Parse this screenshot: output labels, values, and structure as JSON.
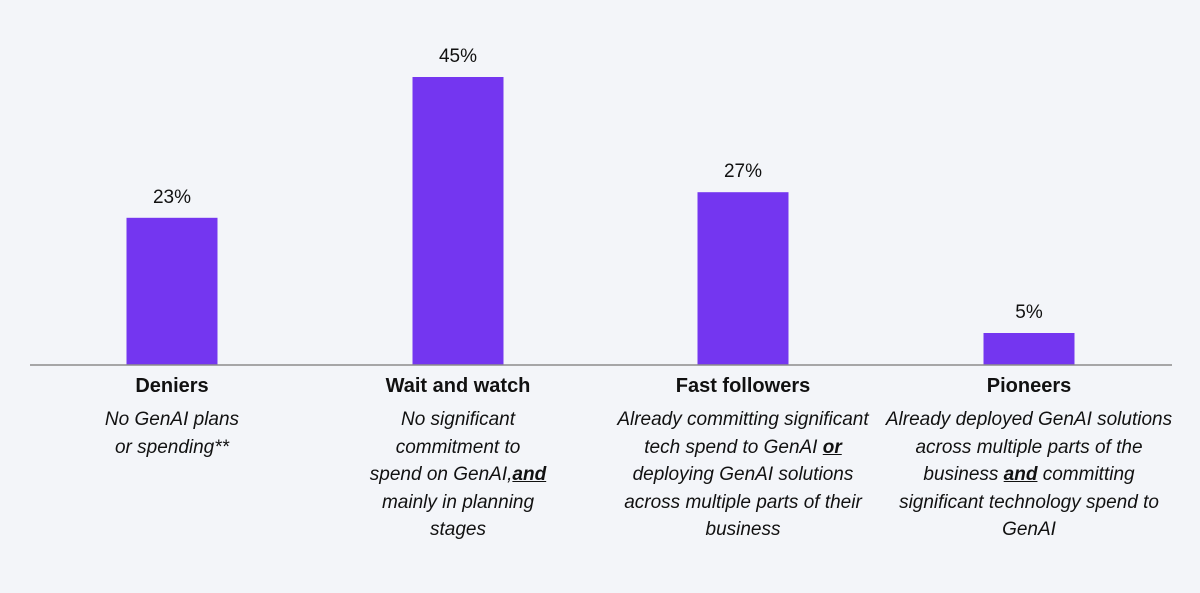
{
  "chart_data": {
    "type": "bar",
    "title": "",
    "xlabel": "",
    "ylabel": "",
    "ylim": [
      0,
      50
    ],
    "grid": false,
    "legend": "none",
    "bar_color": "#7436f0",
    "axis_color": "#8c8c8c",
    "categories": [
      "Deniers",
      "Wait and watch",
      "Fast followers",
      "Pioneers"
    ],
    "values": [
      23,
      45,
      27,
      5
    ],
    "data_labels": [
      "23%",
      "45%",
      "27%",
      "5%"
    ]
  },
  "descriptions": [
    {
      "parts": [
        {
          "text": "No GenAI plans or spending**"
        }
      ]
    },
    {
      "parts": [
        {
          "text": "No significant commitment to spend on GenAI,"
        },
        {
          "text": "and",
          "emph": true
        },
        {
          "text": "  mainly in planning stages"
        }
      ]
    },
    {
      "parts": [
        {
          "text": "Already committing significant tech spend to GenAI "
        },
        {
          "text": "or",
          "emph": true
        },
        {
          "text": " deploying GenAI solutions across multiple parts of their business"
        }
      ]
    },
    {
      "parts": [
        {
          "text": "Already deployed GenAI solutions across multiple parts of the business "
        },
        {
          "text": "and",
          "emph": true
        },
        {
          "text": " committing significant technology spend to GenAI"
        }
      ]
    }
  ]
}
